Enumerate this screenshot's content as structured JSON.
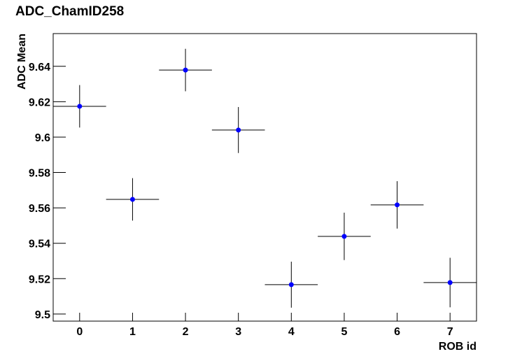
{
  "chart_data": {
    "type": "errorbar",
    "title": "ADC_ChamID258",
    "x_label": "ROB id",
    "y_label": "ADC Mean",
    "xlim": [
      -0.5,
      7.5
    ],
    "xticks": [
      0,
      1,
      2,
      3,
      4,
      5,
      6,
      7
    ],
    "ylim": [
      9.496,
      9.6585
    ],
    "yticks": [
      9.5,
      9.52,
      9.54,
      9.56,
      9.58,
      9.6,
      9.62,
      9.64
    ],
    "series": [
      {
        "color": "#0000ff",
        "x": [
          0,
          1,
          2,
          3,
          4,
          5,
          6,
          7
        ],
        "values": [
          9.6174,
          9.5648,
          9.6379,
          9.604,
          9.5166,
          9.5439,
          9.5617,
          9.5178
        ],
        "errors": [
          0.012,
          0.012,
          0.012,
          0.013,
          0.013,
          0.0134,
          0.0134,
          0.014
        ],
        "xerr": [
          0.5,
          0.5,
          0.5,
          0.5,
          0.5,
          0.5,
          0.5,
          0.5
        ]
      }
    ]
  }
}
